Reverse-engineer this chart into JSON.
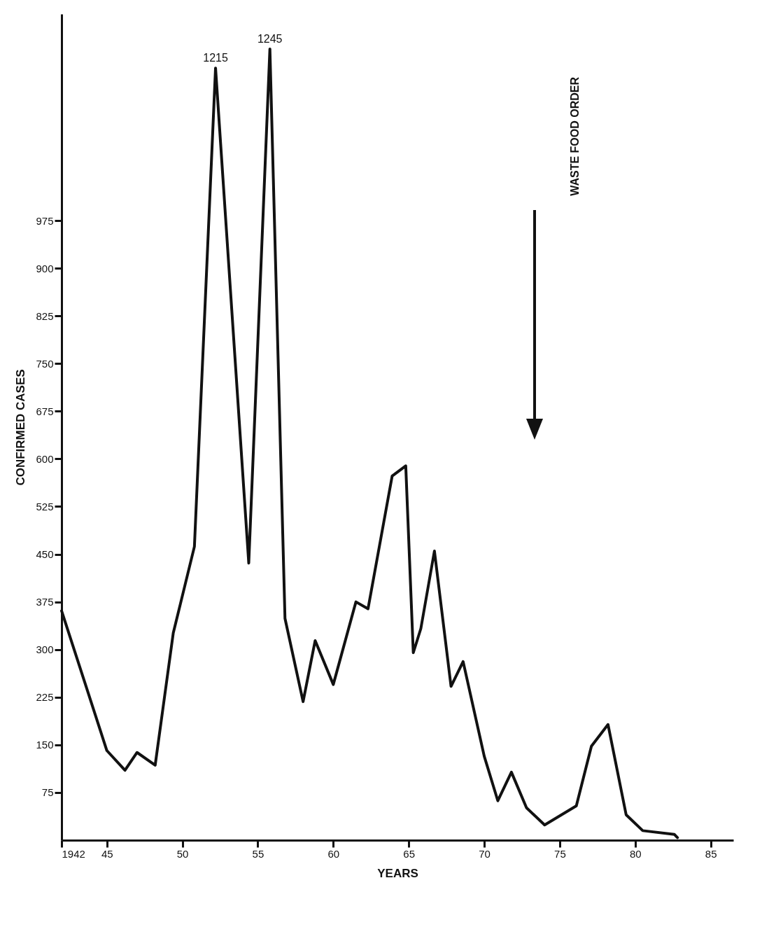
{
  "chart_data": {
    "type": "line",
    "xlabel": "YEARS",
    "ylabel": "CONFIRMED CASES",
    "x": [
      1942,
      1945.0,
      1946.2,
      1947.0,
      1948.2,
      1949.4,
      1950.8,
      1952.2,
      1954.4,
      1955.8,
      1956.8,
      1958.0,
      1958.8,
      1960.0,
      1961.5,
      1962.3,
      1963.9,
      1964.8,
      1965.3,
      1965.8,
      1966.7,
      1967.8,
      1968.6,
      1970.0,
      1970.9,
      1971.8,
      1972.8,
      1974.0,
      1976.1,
      1977.1,
      1978.2,
      1979.4,
      1980.5,
      1982.6,
      1982.8
    ],
    "series": [
      {
        "color": "#111111",
        "values": [
          361,
          141,
          110,
          138,
          118,
          326,
          462,
          1215,
          436,
          1245,
          349,
          218,
          314,
          245,
          375,
          364,
          573,
          589,
          295,
          333,
          455,
          242,
          281,
          132,
          62,
          107,
          51,
          24,
          54,
          148,
          182,
          40,
          15,
          9,
          4
        ],
        "value_labels": [
          null,
          null,
          null,
          null,
          null,
          null,
          null,
          "1215",
          null,
          "1245",
          null,
          null,
          null,
          null,
          null,
          null,
          null,
          null,
          null,
          null,
          null,
          null,
          null,
          null,
          null,
          null,
          null,
          null,
          null,
          null,
          null,
          null,
          null,
          null,
          null
        ]
      }
    ],
    "xlim": [
      1942,
      1986.5
    ],
    "xticks": [
      {
        "value": 1942,
        "label": "1942"
      },
      {
        "value": 1945,
        "label": "45"
      },
      {
        "value": 1950,
        "label": "50"
      },
      {
        "value": 1955,
        "label": "55"
      },
      {
        "value": 1960,
        "label": "60"
      },
      {
        "value": 1965,
        "label": "65"
      },
      {
        "value": 1970,
        "label": "70"
      },
      {
        "value": 1975,
        "label": "75"
      },
      {
        "value": 1980,
        "label": "80"
      },
      {
        "value": 1985,
        "label": "85"
      }
    ],
    "ylim": [
      0,
      1300
    ],
    "yticks": [
      75,
      150,
      225,
      300,
      375,
      450,
      525,
      600,
      675,
      750,
      825,
      900,
      975
    ],
    "annotations": [
      "WASTE FOOD ORDER"
    ],
    "grid": false,
    "marker": "none",
    "line_style": "solid"
  }
}
